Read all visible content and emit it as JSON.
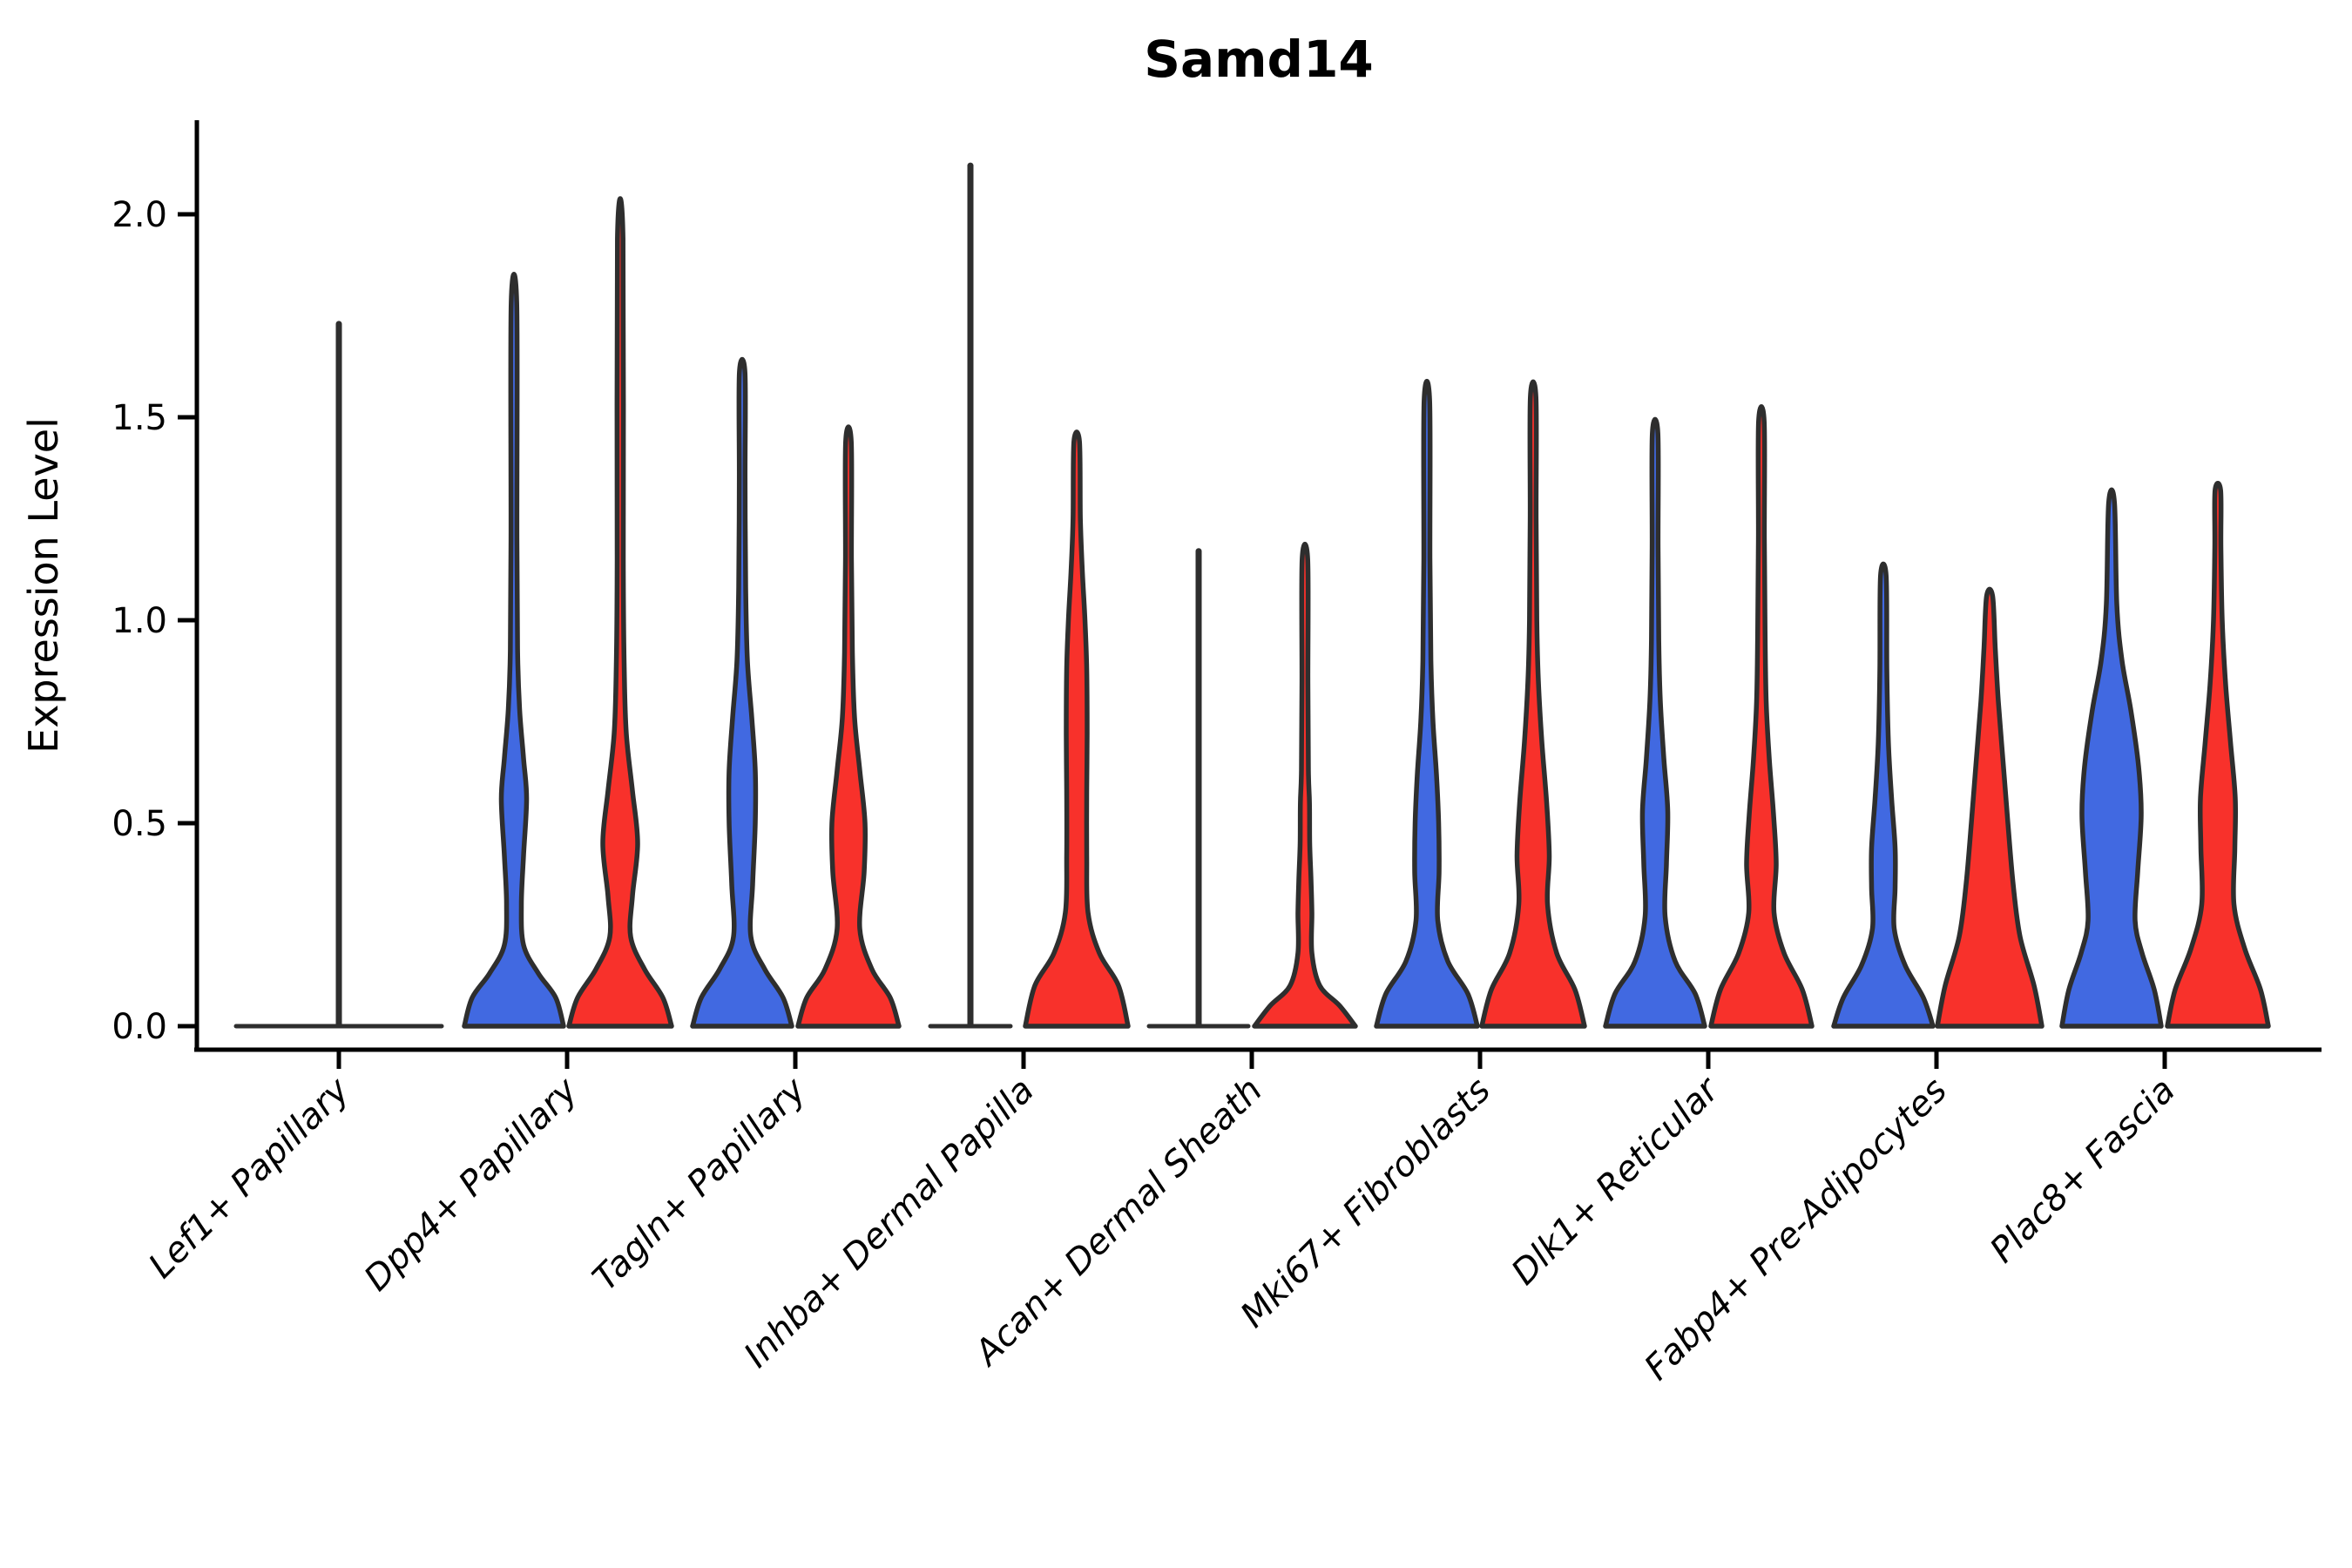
{
  "chart_data": {
    "type": "violin",
    "title": "Samd14",
    "ylabel": "Expression Level",
    "xlabel": "",
    "ylim": [
      -0.06,
      2.23
    ],
    "yticks": [
      0.0,
      0.5,
      1.0,
      1.5,
      2.0
    ],
    "ytick_labels": [
      "0.0",
      "0.5",
      "1.0",
      "1.5",
      "2.0"
    ],
    "grid": false,
    "legend": "none",
    "outline_color": "#2e2e2e",
    "split_colors": {
      "blue": "#4169E1",
      "red": "#F8312B",
      "single": "none"
    },
    "categories": [
      "Lef1+ Papillary",
      "Dpp4+ Papillary",
      "Tagln+ Papillary",
      "Inhba+ Dermal Papilla",
      "Acan+ Dermal Sheath",
      "Mki67+ Fibroblasts",
      "Dlk1+ Reticular",
      "Fabp4+ Pre-Adipocytes",
      "Plac8+ Fascia"
    ],
    "groups": [
      {
        "category": "Lef1+ Papillary",
        "violins": [
          {
            "side": "single",
            "flat": true,
            "max": 1.73,
            "half_width": 118
          }
        ]
      },
      {
        "category": "Dpp4+ Papillary",
        "violins": [
          {
            "side": "blue",
            "flat": false,
            "max": 1.78,
            "profile": [
              [
                0,
                57
              ],
              [
                0.07,
                48
              ],
              [
                0.13,
                28
              ],
              [
                0.2,
                11
              ],
              [
                0.3,
                8.5
              ],
              [
                0.42,
                11
              ],
              [
                0.56,
                14.5
              ],
              [
                0.66,
                11
              ],
              [
                0.78,
                6.5
              ],
              [
                0.92,
                4.2
              ],
              [
                1.2,
                3.4
              ],
              [
                1.78,
                3.2
              ]
            ]
          },
          {
            "side": "red",
            "flat": false,
            "max": 1.94,
            "profile": [
              [
                0,
                59
              ],
              [
                0.07,
                49
              ],
              [
                0.14,
                28
              ],
              [
                0.22,
                12
              ],
              [
                0.32,
                14
              ],
              [
                0.45,
                20
              ],
              [
                0.58,
                14
              ],
              [
                0.72,
                7
              ],
              [
                0.88,
                4.6
              ],
              [
                1.15,
                3.5
              ],
              [
                1.94,
                3.2
              ]
            ]
          }
        ]
      },
      {
        "category": "Tagln+ Papillary",
        "violins": [
          {
            "side": "blue",
            "flat": false,
            "max": 1.61,
            "profile": [
              [
                0,
                57
              ],
              [
                0.07,
                47
              ],
              [
                0.14,
                26
              ],
              [
                0.22,
                10
              ],
              [
                0.35,
                12
              ],
              [
                0.5,
                15
              ],
              [
                0.63,
                15
              ],
              [
                0.76,
                11
              ],
              [
                0.9,
                6
              ],
              [
                1.08,
                4
              ],
              [
                1.35,
                3.3
              ],
              [
                1.61,
                3.2
              ]
            ]
          },
          {
            "side": "red",
            "flat": false,
            "max": 1.44,
            "profile": [
              [
                0,
                58
              ],
              [
                0.07,
                48
              ],
              [
                0.14,
                27
              ],
              [
                0.24,
                13
              ],
              [
                0.38,
                18
              ],
              [
                0.5,
                19
              ],
              [
                0.63,
                13
              ],
              [
                0.76,
                7
              ],
              [
                0.92,
                4.5
              ],
              [
                1.15,
                3.4
              ],
              [
                1.44,
                3.2
              ]
            ]
          }
        ]
      },
      {
        "category": "Inhba+ Dermal Papilla",
        "violins": [
          {
            "side": "blue",
            "flat": true,
            "max": 2.12,
            "half_width": 46
          },
          {
            "side": "red",
            "flat": false,
            "max": 1.44,
            "profile": [
              [
                0,
                59
              ],
              [
                0.1,
                48
              ],
              [
                0.18,
                26
              ],
              [
                0.28,
                13
              ],
              [
                0.42,
                11.5
              ],
              [
                0.58,
                11.5
              ],
              [
                0.72,
                12
              ],
              [
                0.88,
                11.5
              ],
              [
                1.0,
                9.5
              ],
              [
                1.12,
                6.5
              ],
              [
                1.25,
                4.2
              ],
              [
                1.44,
                3.2
              ]
            ]
          }
        ]
      },
      {
        "category": "Acan+ Dermal Sheath",
        "violins": [
          {
            "side": "blue",
            "flat": true,
            "max": 1.17,
            "half_width": 57
          },
          {
            "side": "red",
            "flat": false,
            "max": 1.15,
            "profile": [
              [
                0,
                58
              ],
              [
                0.05,
                40
              ],
              [
                0.1,
                17
              ],
              [
                0.18,
                8
              ],
              [
                0.28,
                8
              ],
              [
                0.36,
                7
              ],
              [
                0.45,
                5.5
              ],
              [
                0.55,
                5.2
              ],
              [
                0.63,
                4
              ],
              [
                0.85,
                3.4
              ],
              [
                1.15,
                3.2
              ]
            ]
          }
        ]
      },
      {
        "category": "Mki67+ Fibroblasts",
        "violins": [
          {
            "side": "blue",
            "flat": false,
            "max": 1.54,
            "profile": [
              [
                0,
                58
              ],
              [
                0.08,
                47
              ],
              [
                0.16,
                24
              ],
              [
                0.26,
                12.5
              ],
              [
                0.38,
                14
              ],
              [
                0.5,
                13.5
              ],
              [
                0.62,
                11
              ],
              [
                0.75,
                7
              ],
              [
                0.9,
                4.6
              ],
              [
                1.15,
                3.5
              ],
              [
                1.54,
                3.2
              ]
            ]
          },
          {
            "side": "red",
            "flat": false,
            "max": 1.55,
            "profile": [
              [
                0,
                59
              ],
              [
                0.09,
                48
              ],
              [
                0.18,
                27
              ],
              [
                0.3,
                16.5
              ],
              [
                0.42,
                18.5
              ],
              [
                0.55,
                15.5
              ],
              [
                0.7,
                10
              ],
              [
                0.85,
                6
              ],
              [
                1.0,
                4.2
              ],
              [
                1.25,
                3.4
              ],
              [
                1.55,
                3.2
              ]
            ]
          }
        ]
      },
      {
        "category": "Dlk1+ Reticular",
        "violins": [
          {
            "side": "blue",
            "flat": false,
            "max": 1.46,
            "profile": [
              [
                0,
                57
              ],
              [
                0.08,
                46
              ],
              [
                0.16,
                23
              ],
              [
                0.27,
                11.5
              ],
              [
                0.4,
                13
              ],
              [
                0.53,
                14.5
              ],
              [
                0.66,
                10
              ],
              [
                0.8,
                6
              ],
              [
                0.95,
                4.2
              ],
              [
                1.18,
                3.4
              ],
              [
                1.46,
                3.2
              ]
            ]
          },
          {
            "side": "red",
            "flat": false,
            "max": 1.49,
            "profile": [
              [
                0,
                58
              ],
              [
                0.09,
                47
              ],
              [
                0.18,
                26
              ],
              [
                0.28,
                14.5
              ],
              [
                0.4,
                17
              ],
              [
                0.52,
                14
              ],
              [
                0.66,
                9
              ],
              [
                0.8,
                5.5
              ],
              [
                0.98,
                4.2
              ],
              [
                1.2,
                3.4
              ],
              [
                1.49,
                3.2
              ]
            ]
          }
        ]
      },
      {
        "category": "Fabp4+ Pre-Adipocytes",
        "violins": [
          {
            "side": "blue",
            "flat": false,
            "max": 1.11,
            "profile": [
              [
                0,
                57
              ],
              [
                0.07,
                46
              ],
              [
                0.15,
                25
              ],
              [
                0.24,
                12.5
              ],
              [
                0.34,
                13.5
              ],
              [
                0.44,
                13.5
              ],
              [
                0.56,
                9.5
              ],
              [
                0.7,
                5.8
              ],
              [
                0.88,
                4
              ],
              [
                1.11,
                3.2
              ]
            ]
          },
          {
            "side": "red",
            "flat": false,
            "max": 1.06,
            "profile": [
              [
                0,
                60
              ],
              [
                0.1,
                51
              ],
              [
                0.22,
                35
              ],
              [
                0.35,
                27
              ],
              [
                0.5,
                21
              ],
              [
                0.65,
                15.5
              ],
              [
                0.8,
                10
              ],
              [
                0.93,
                6.5
              ],
              [
                1.06,
                3.4
              ]
            ]
          }
        ]
      },
      {
        "category": "Plac8+ Fascia",
        "violins": [
          {
            "side": "blue",
            "flat": false,
            "max": 1.29,
            "profile": [
              [
                0,
                57
              ],
              [
                0.09,
                49
              ],
              [
                0.18,
                35
              ],
              [
                0.26,
                27
              ],
              [
                0.38,
                30
              ],
              [
                0.52,
                34
              ],
              [
                0.64,
                31
              ],
              [
                0.78,
                22
              ],
              [
                0.9,
                12
              ],
              [
                1.04,
                6
              ],
              [
                1.29,
                3.3
              ]
            ]
          },
          {
            "side": "red",
            "flat": false,
            "max": 1.32,
            "profile": [
              [
                0,
                58
              ],
              [
                0.09,
                49
              ],
              [
                0.19,
                31
              ],
              [
                0.3,
                18.5
              ],
              [
                0.44,
                19.5
              ],
              [
                0.56,
                20
              ],
              [
                0.7,
                14.5
              ],
              [
                0.84,
                9
              ],
              [
                1.0,
                5
              ],
              [
                1.18,
                3.5
              ],
              [
                1.32,
                3.2
              ]
            ]
          }
        ]
      }
    ]
  }
}
